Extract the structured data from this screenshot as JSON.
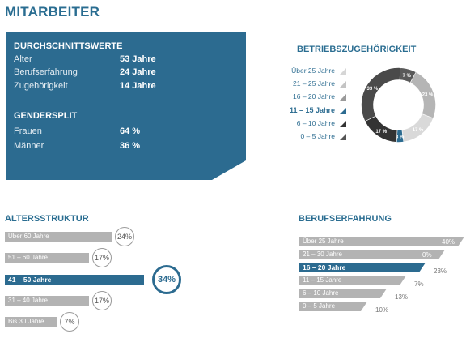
{
  "title": "MITARBEITER",
  "summary": {
    "averages_heading": "DURCHSCHNITTSWERTE",
    "averages": [
      {
        "label": "Alter",
        "value": "53 Jahre"
      },
      {
        "label": "Berufserfahrung",
        "value": "24 Jahre"
      },
      {
        "label": "Zugehörigkeit",
        "value": "14 Jahre"
      }
    ],
    "gender_heading": "GENDERSPLIT",
    "gender": [
      {
        "label": "Frauen",
        "value": "64 %"
      },
      {
        "label": "Männer",
        "value": "36 %"
      }
    ]
  },
  "colors": {
    "brand": "#2c6b90",
    "bar_gray": "#b3b3b3",
    "title_blue": "#2a6d91"
  },
  "chart_data": [
    {
      "type": "pie",
      "title": "BETRIEBSZUGEHÖRIGKEIT",
      "categories": [
        "Über 25 Jahre",
        "21 – 25 Jahre",
        "16 – 20 Jahre",
        "11 – 15 Jahre",
        "6 – 10 Jahre",
        "0 – 5 Jahre"
      ],
      "values": [
        7,
        23,
        17,
        3,
        17,
        33
      ],
      "labels": [
        "7 %",
        "23 %",
        "17 %",
        "3 %",
        "17 %",
        "33 %"
      ],
      "colors": [
        "#595959",
        "#b5b5b5",
        "#d9d9d9",
        "#2c6b90",
        "#333333",
        "#4a4a4a"
      ],
      "highlight": "11 – 15 Jahre",
      "legend_position": "left"
    },
    {
      "type": "bar",
      "title": "ALTERSSTRUKTUR",
      "categories": [
        "Über 60 Jahre",
        "51 – 60 Jahre",
        "41 – 50 Jahre",
        "31 – 40 Jahre",
        "Bis 30 Jahre"
      ],
      "values": [
        24,
        17,
        34,
        17,
        7
      ],
      "labels": [
        "24%",
        "17%",
        "34%",
        "17%",
        "7%"
      ],
      "highlight": "41 – 50 Jahre"
    },
    {
      "type": "bar",
      "title": "BERUFSERFAHRUNG",
      "categories": [
        "Über 25 Jahre",
        "21 – 30 Jahre",
        "16 – 20 Jahre",
        "11 – 15 Jahre",
        "6 – 10 Jahre",
        "0 – 5 Jahre"
      ],
      "values": [
        40,
        0,
        23,
        7,
        13,
        10
      ],
      "labels": [
        "40%",
        "0%",
        "23%",
        "7%",
        "13%",
        "10%"
      ],
      "highlight": "16 – 20 Jahre"
    }
  ]
}
